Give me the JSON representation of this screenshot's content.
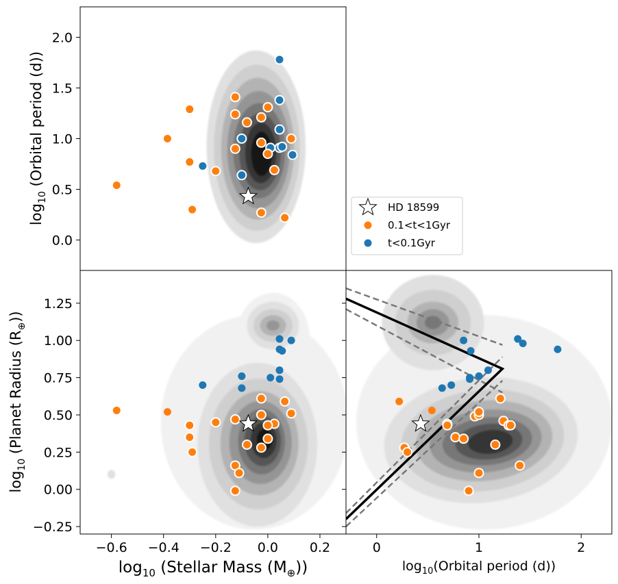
{
  "chart_data": {
    "type": "scatter",
    "colors": {
      "young": "#1f77b4",
      "mid": "#ff7f0e",
      "star_fill": "#ffffff",
      "star_edge": "#000000"
    },
    "legend": {
      "placement": "bottom-left of top-right panel",
      "entries": [
        {
          "key": "star",
          "label": "HD 18599"
        },
        {
          "key": "mid",
          "label": "0.1<t<1Gyr"
        },
        {
          "key": "young",
          "label": "t<0.1Gyr"
        }
      ]
    },
    "panels": {
      "top_left": {
        "ylabel": "log10 (Orbital period (d))",
        "ylabel_main": "log",
        "ylabel_sub": "10",
        "ylabel_rest": " (Orbital period (d))",
        "xlim": [
          -0.72,
          0.3
        ],
        "ylim": [
          -0.3,
          2.3
        ],
        "yticks": [
          0.0,
          0.5,
          1.0,
          1.5,
          2.0
        ],
        "ytick_labels": [
          "0.0",
          "0.5",
          "1.0",
          "1.5",
          "2.0"
        ],
        "star": {
          "x": -0.075,
          "y": 0.43
        },
        "kde_peak": {
          "x": -0.02,
          "y": 0.9
        },
        "series": [
          {
            "name": "t<0.1Gyr",
            "group": "young",
            "points": [
              {
                "x": 0.045,
                "y": 1.78,
                "edge": true
              },
              {
                "x": 0.045,
                "y": 1.38,
                "edge": true
              },
              {
                "x": 0.045,
                "y": 1.09,
                "edge": true
              },
              {
                "x": -0.1,
                "y": 1.0,
                "edge": true
              },
              {
                "x": 0.01,
                "y": 0.91,
                "edge": true
              },
              {
                "x": 0.045,
                "y": 0.91,
                "edge": true
              },
              {
                "x": 0.055,
                "y": 0.92,
                "edge": true
              },
              {
                "x": 0.095,
                "y": 0.84,
                "edge": true
              },
              {
                "x": -0.1,
                "y": 0.64,
                "edge": true
              },
              {
                "x": -0.25,
                "y": 0.73,
                "edge": false
              }
            ]
          },
          {
            "name": "0.1<t<1Gyr",
            "group": "mid",
            "points": [
              {
                "x": -0.125,
                "y": 1.41,
                "edge": true
              },
              {
                "x": -0.3,
                "y": 1.29,
                "edge": false
              },
              {
                "x": 0.0,
                "y": 1.31,
                "edge": true
              },
              {
                "x": -0.125,
                "y": 1.24,
                "edge": true
              },
              {
                "x": -0.025,
                "y": 1.21,
                "edge": true
              },
              {
                "x": -0.08,
                "y": 1.16,
                "edge": true
              },
              {
                "x": -0.385,
                "y": 1.0,
                "edge": false
              },
              {
                "x": 0.09,
                "y": 1.0,
                "edge": true
              },
              {
                "x": -0.025,
                "y": 0.96,
                "edge": true
              },
              {
                "x": -0.125,
                "y": 0.9,
                "edge": true
              },
              {
                "x": 0.0,
                "y": 0.85,
                "edge": true
              },
              {
                "x": -0.3,
                "y": 0.77,
                "edge": false
              },
              {
                "x": 0.025,
                "y": 0.69,
                "edge": true
              },
              {
                "x": -0.2,
                "y": 0.68,
                "edge": true
              },
              {
                "x": -0.58,
                "y": 0.54,
                "edge": false
              },
              {
                "x": -0.29,
                "y": 0.3,
                "edge": true
              },
              {
                "x": -0.025,
                "y": 0.27,
                "edge": true
              },
              {
                "x": 0.065,
                "y": 0.22,
                "edge": true
              }
            ]
          }
        ]
      },
      "bottom_left": {
        "xlabel": "log10 (Stellar Mass (M⊕))",
        "xlabel_main": "log",
        "xlabel_sub": "10",
        "xlabel_rest": " (Stellar Mass (M",
        "xlabel_sub2": "⊕",
        "xlabel_end": "))",
        "ylabel": "log10 (Planet Radius (R⊕))",
        "ylabel_main": "log",
        "ylabel_sub": "10",
        "ylabel_rest": " (Planet Radius (R",
        "ylabel_sub2": "⊕",
        "ylabel_end": "))",
        "xlim": [
          -0.72,
          0.3
        ],
        "ylim": [
          -0.3,
          1.47
        ],
        "xticks": [
          -0.6,
          -0.4,
          -0.2,
          0.0,
          0.2
        ],
        "xtick_labels": [
          "−0.6",
          "−0.4",
          "−0.2",
          "0.0",
          "0.2"
        ],
        "yticks": [
          -0.25,
          0.0,
          0.25,
          0.5,
          0.75,
          1.0,
          1.25
        ],
        "ytick_labels": [
          "−0.25",
          "0.00",
          "0.25",
          "0.50",
          "0.75",
          "1.00",
          "1.25"
        ],
        "star": {
          "x": -0.075,
          "y": 0.44
        },
        "series": [
          {
            "name": "t<0.1Gyr",
            "group": "young",
            "points": [
              {
                "x": 0.045,
                "y": 1.01
              },
              {
                "x": 0.09,
                "y": 1.0
              },
              {
                "x": 0.045,
                "y": 0.94
              },
              {
                "x": 0.055,
                "y": 0.93
              },
              {
                "x": 0.045,
                "y": 0.8
              },
              {
                "x": 0.01,
                "y": 0.75
              },
              {
                "x": 0.045,
                "y": 0.74
              },
              {
                "x": -0.1,
                "y": 0.76
              },
              {
                "x": -0.1,
                "y": 0.68
              },
              {
                "x": -0.25,
                "y": 0.7
              }
            ]
          },
          {
            "name": "0.1<t<1Gyr",
            "group": "mid",
            "points": [
              {
                "x": -0.025,
                "y": 0.61
              },
              {
                "x": 0.065,
                "y": 0.59
              },
              {
                "x": 0.09,
                "y": 0.51
              },
              {
                "x": -0.025,
                "y": 0.5
              },
              {
                "x": -0.125,
                "y": 0.47
              },
              {
                "x": -0.2,
                "y": 0.45
              },
              {
                "x": 0.025,
                "y": 0.44
              },
              {
                "x": 0.0,
                "y": 0.43
              },
              {
                "x": 0.0,
                "y": 0.34
              },
              {
                "x": -0.08,
                "y": 0.3
              },
              {
                "x": -0.025,
                "y": 0.28
              },
              {
                "x": -0.125,
                "y": 0.16
              },
              {
                "x": -0.11,
                "y": 0.11
              },
              {
                "x": -0.125,
                "y": -0.01
              },
              {
                "x": -0.3,
                "y": 0.43
              },
              {
                "x": -0.3,
                "y": 0.35
              },
              {
                "x": -0.29,
                "y": 0.25
              },
              {
                "x": -0.385,
                "y": 0.52
              },
              {
                "x": -0.58,
                "y": 0.53
              }
            ]
          }
        ]
      },
      "bottom_right": {
        "xlabel": "log10(Orbital period (d))",
        "xlabel_main": "log",
        "xlabel_sub": "10",
        "xlabel_rest": "(Orbital period (d))",
        "xlim": [
          -0.3,
          2.3
        ],
        "ylim": [
          -0.3,
          1.47
        ],
        "xticks": [
          0,
          1,
          2
        ],
        "xtick_labels": [
          "0",
          "1",
          "2"
        ],
        "yticks": [
          -0.25,
          0.0,
          0.25,
          0.5,
          0.75,
          1.0,
          1.25
        ],
        "star": {
          "x": 0.43,
          "y": 0.44
        },
        "fit_line": [
          [
            -0.3,
            -0.2
          ],
          [
            1.23,
            0.81
          ],
          [
            -0.3,
            1.28
          ]
        ],
        "upper_bounds": [
          [
            [
              -0.3,
              -0.16
            ],
            [
              1.23,
              0.89
            ]
          ],
          [
            [
              -0.3,
              1.35
            ],
            [
              1.23,
              0.97
            ]
          ]
        ],
        "lower_bounds": [
          [
            [
              -0.3,
              -0.25
            ],
            [
              1.23,
              0.73
            ]
          ],
          [
            [
              -0.3,
              1.21
            ],
            [
              1.23,
              0.65
            ]
          ]
        ],
        "series": [
          {
            "name": "t<0.1Gyr",
            "group": "young",
            "points": [
              {
                "x": 0.85,
                "y": 1.0,
                "edge": false
              },
              {
                "x": 0.92,
                "y": 0.93,
                "edge": false
              },
              {
                "x": 1.38,
                "y": 1.01,
                "edge": false
              },
              {
                "x": 1.43,
                "y": 0.98,
                "edge": false
              },
              {
                "x": 1.77,
                "y": 0.94,
                "edge": false
              },
              {
                "x": 0.91,
                "y": 0.75,
                "edge": false
              },
              {
                "x": 0.91,
                "y": 0.74,
                "edge": false
              },
              {
                "x": 1.0,
                "y": 0.76,
                "edge": false
              },
              {
                "x": 1.09,
                "y": 0.8,
                "edge": false
              },
              {
                "x": 0.73,
                "y": 0.7,
                "edge": false
              },
              {
                "x": 0.64,
                "y": 0.68,
                "edge": false
              }
            ]
          },
          {
            "name": "0.1<t<1Gyr",
            "group": "mid",
            "points": [
              {
                "x": 0.22,
                "y": 0.59,
                "edge": false
              },
              {
                "x": 0.54,
                "y": 0.53,
                "edge": false
              },
              {
                "x": 1.21,
                "y": 0.61,
                "edge": true
              },
              {
                "x": 0.96,
                "y": 0.49,
                "edge": true
              },
              {
                "x": 1.0,
                "y": 0.5,
                "edge": true
              },
              {
                "x": 1.0,
                "y": 0.52,
                "edge": true
              },
              {
                "x": 1.24,
                "y": 0.46,
                "edge": true
              },
              {
                "x": 0.69,
                "y": 0.44,
                "edge": true
              },
              {
                "x": 0.69,
                "y": 0.43,
                "edge": true
              },
              {
                "x": 1.29,
                "y": 0.43,
                "edge": true
              },
              {
                "x": 1.31,
                "y": 0.43,
                "edge": true
              },
              {
                "x": 0.77,
                "y": 0.35,
                "edge": true
              },
              {
                "x": 0.85,
                "y": 0.34,
                "edge": true
              },
              {
                "x": 1.16,
                "y": 0.3,
                "edge": true
              },
              {
                "x": 0.27,
                "y": 0.28,
                "edge": true
              },
              {
                "x": 0.3,
                "y": 0.25,
                "edge": true
              },
              {
                "x": 1.4,
                "y": 0.16,
                "edge": true
              },
              {
                "x": 1.0,
                "y": 0.11,
                "edge": true
              },
              {
                "x": 0.9,
                "y": -0.01,
                "edge": true
              }
            ]
          }
        ]
      }
    }
  }
}
